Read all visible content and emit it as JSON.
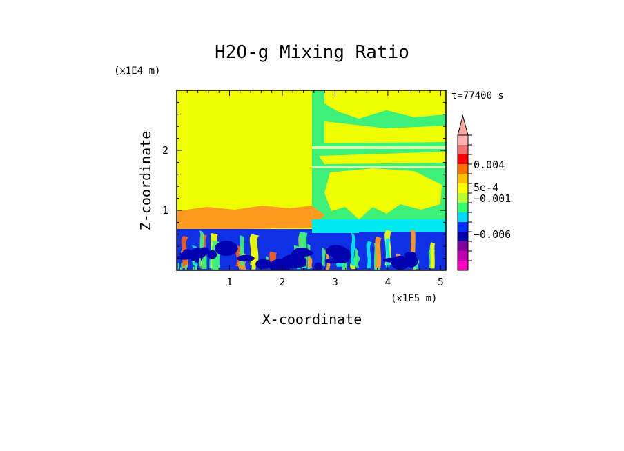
{
  "chart_data": {
    "type": "heatmap",
    "title": "H2O-g Mixing Ratio",
    "xlabel": "X-coordinate",
    "ylabel": "Z-coordinate",
    "x_scale_label": "(x1E5 m)",
    "y_scale_label": "(x1E4 m)",
    "time_label": "t=77400 s",
    "xlim": [
      0,
      5.1
    ],
    "ylim": [
      0,
      3.0
    ],
    "x_ticks": [
      "1",
      "2",
      "3",
      "4",
      "5"
    ],
    "x_tick_values": [
      1,
      2,
      3,
      4,
      5
    ],
    "y_ticks": [
      "1",
      "2"
    ],
    "y_tick_values": [
      1,
      2
    ],
    "colorbar": {
      "labels": [
        "0.004",
        "5e-4",
        "−0.001",
        "−0.006"
      ],
      "colors": [
        "#ff00c0",
        "#c000b0",
        "#8000a0",
        "#0000a8",
        "#0030ff",
        "#00d8ff",
        "#30ff70",
        "#b8ff30",
        "#ffff00",
        "#ffc000",
        "#ff7000",
        "#ff0000",
        "#f07070",
        "#ffb0b0"
      ]
    },
    "colors": {
      "yellow": "#f0ff00",
      "light_green": "#3cf07a",
      "mid_green": "#20e080",
      "cyan": "#00e8f0",
      "blue": "#1030e8",
      "dark_blue": "#0000b0",
      "orange": "#ff9a20",
      "red_orange": "#f06020"
    }
  }
}
